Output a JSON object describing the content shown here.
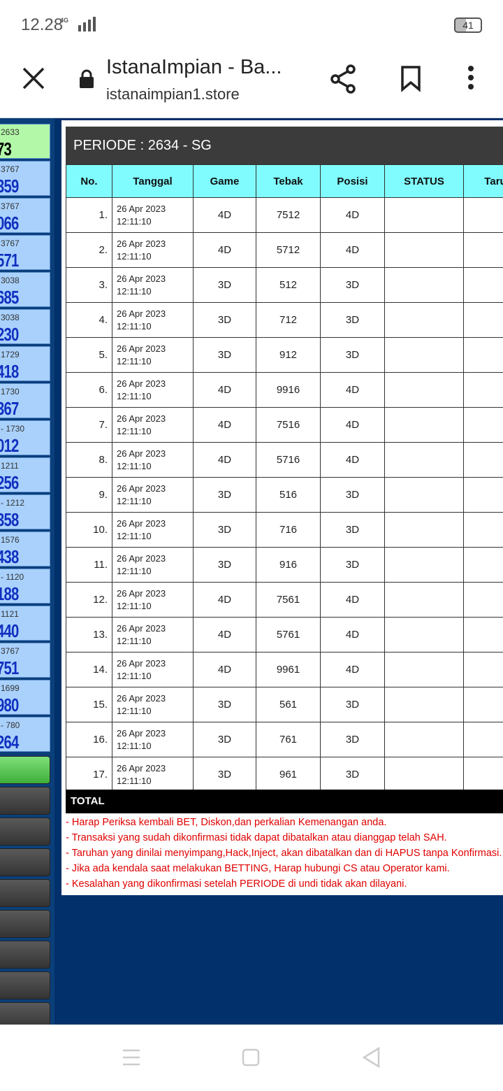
{
  "status_bar": {
    "time": "12.28",
    "network": "4G",
    "battery": "41"
  },
  "browser": {
    "title": "IstanaImpian - Ba...",
    "url": "istanaimpian1.store"
  },
  "sidebar": {
    "items": [
      {
        "label": "2633",
        "number": "73"
      },
      {
        "label": "3767",
        "number": "359"
      },
      {
        "label": "3767",
        "number": "066"
      },
      {
        "label": "3767",
        "number": "571"
      },
      {
        "label": "3038",
        "number": "685"
      },
      {
        "label": "3038",
        "number": "230"
      },
      {
        "label": "1729",
        "number": "418"
      },
      {
        "label": "1730",
        "number": "367"
      },
      {
        "label": "- 1730",
        "number": "012"
      },
      {
        "label": "1211",
        "number": "256"
      },
      {
        "label": "- 1212",
        "number": "358"
      },
      {
        "label": "1576",
        "number": "438"
      },
      {
        "label": "- 1120",
        "number": "188"
      },
      {
        "label": "1121",
        "number": "440"
      },
      {
        "label": "3767",
        "number": "751"
      },
      {
        "label": "1699",
        "number": "980"
      },
      {
        "label": "- 780",
        "number": "264"
      }
    ]
  },
  "table": {
    "title": "PERIODE : 2634 - SG",
    "columns": [
      "No.",
      "Tanggal",
      "Game",
      "Tebak",
      "Posisi",
      "STATUS",
      "Taru"
    ],
    "rows": [
      {
        "no": "1.",
        "date": "26 Apr 2023",
        "time": "12:11:10",
        "game": "4D",
        "tebak": "7512",
        "posisi": "4D"
      },
      {
        "no": "2.",
        "date": "26 Apr 2023",
        "time": "12:11:10",
        "game": "4D",
        "tebak": "5712",
        "posisi": "4D"
      },
      {
        "no": "3.",
        "date": "26 Apr 2023",
        "time": "12:11:10",
        "game": "3D",
        "tebak": "512",
        "posisi": "3D"
      },
      {
        "no": "4.",
        "date": "26 Apr 2023",
        "time": "12:11:10",
        "game": "3D",
        "tebak": "712",
        "posisi": "3D"
      },
      {
        "no": "5.",
        "date": "26 Apr 2023",
        "time": "12:11:10",
        "game": "3D",
        "tebak": "912",
        "posisi": "3D"
      },
      {
        "no": "6.",
        "date": "26 Apr 2023",
        "time": "12:11:10",
        "game": "4D",
        "tebak": "9916",
        "posisi": "4D"
      },
      {
        "no": "7.",
        "date": "26 Apr 2023",
        "time": "12:11:10",
        "game": "4D",
        "tebak": "7516",
        "posisi": "4D"
      },
      {
        "no": "8.",
        "date": "26 Apr 2023",
        "time": "12:11:10",
        "game": "4D",
        "tebak": "5716",
        "posisi": "4D"
      },
      {
        "no": "9.",
        "date": "26 Apr 2023",
        "time": "12:11:10",
        "game": "3D",
        "tebak": "516",
        "posisi": "3D"
      },
      {
        "no": "10.",
        "date": "26 Apr 2023",
        "time": "12:11:10",
        "game": "3D",
        "tebak": "716",
        "posisi": "3D"
      },
      {
        "no": "11.",
        "date": "26 Apr 2023",
        "time": "12:11:10",
        "game": "3D",
        "tebak": "916",
        "posisi": "3D"
      },
      {
        "no": "12.",
        "date": "26 Apr 2023",
        "time": "12:11:10",
        "game": "4D",
        "tebak": "7561",
        "posisi": "4D"
      },
      {
        "no": "13.",
        "date": "26 Apr 2023",
        "time": "12:11:10",
        "game": "4D",
        "tebak": "5761",
        "posisi": "4D"
      },
      {
        "no": "14.",
        "date": "26 Apr 2023",
        "time": "12:11:10",
        "game": "4D",
        "tebak": "9961",
        "posisi": "4D"
      },
      {
        "no": "15.",
        "date": "26 Apr 2023",
        "time": "12:11:10",
        "game": "3D",
        "tebak": "561",
        "posisi": "3D"
      },
      {
        "no": "16.",
        "date": "26 Apr 2023",
        "time": "12:11:10",
        "game": "3D",
        "tebak": "761",
        "posisi": "3D"
      },
      {
        "no": "17.",
        "date": "26 Apr 2023",
        "time": "12:11:10",
        "game": "3D",
        "tebak": "961",
        "posisi": "3D"
      }
    ],
    "total": "TOTAL"
  },
  "notes": [
    "- Harap Periksa kembali BET, Diskon,dan perkalian Kemenangan anda.",
    "- Transaksi yang sudah dikonfirmasi tidak dapat dibatalkan atau dianggap telah SAH.",
    "- Taruhan yang dinilai menyimpang,Hack,Inject, akan dibatalkan dan di HAPUS tanpa Konfirmasi.",
    "- Jika ada kendala saat melakukan BETTING, Harap hubungi CS atau Operator kami.",
    "- Kesalahan yang dikonfirmasi setelah PERIODE di undi tidak akan dilayani."
  ]
}
